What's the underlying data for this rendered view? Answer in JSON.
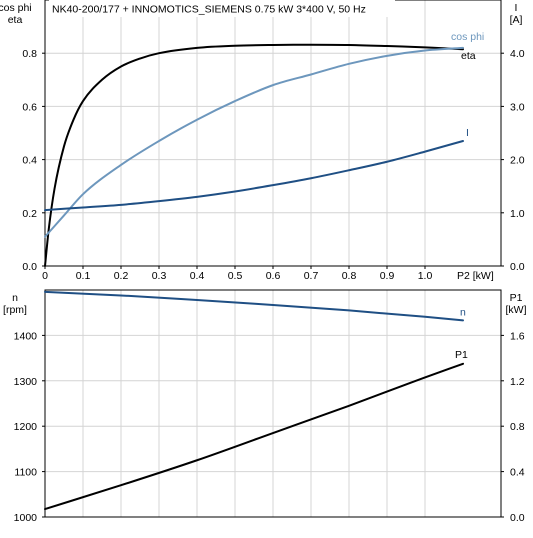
{
  "title": "NK40-200/177 + INNOMOTICS_SIEMENS   0.75 kW   3*400 V, 50 Hz",
  "chart_data": [
    {
      "type": "line",
      "x_axis": {
        "label": "P2 [kW]",
        "range": [
          0,
          1.1
        ],
        "ticks": [
          0,
          0.1,
          0.2,
          0.3,
          0.4,
          0.5,
          0.6,
          0.7,
          0.8,
          0.9,
          1.0
        ],
        "tick_labels": [
          "0",
          "0.1",
          "0.2",
          "0.3",
          "0.4",
          "0.5",
          "0.6",
          "0.7",
          "0.8",
          "0.9",
          "1.0"
        ]
      },
      "y_left": {
        "label_lines": [
          "cos phi",
          "eta"
        ],
        "range": [
          0,
          1.0
        ],
        "ticks": [
          0,
          0.2,
          0.4,
          0.6,
          0.8
        ],
        "tick_labels": [
          "0.0",
          "0.2",
          "0.4",
          "0.6",
          "0.8"
        ]
      },
      "y_right": {
        "label_lines": [
          "I",
          "[A]"
        ],
        "range": [
          0,
          5.0
        ],
        "ticks": [
          0,
          1,
          2,
          3,
          4
        ],
        "tick_labels": [
          "0.0",
          "1.0",
          "2.0",
          "3.0",
          "4.0"
        ]
      },
      "series": [
        {
          "name": "eta",
          "axis": "left",
          "color": "#000000",
          "x": [
            0,
            0.01,
            0.025,
            0.05,
            0.075,
            0.1,
            0.15,
            0.2,
            0.25,
            0.3,
            0.4,
            0.5,
            0.6,
            0.7,
            0.8,
            0.9,
            1.0,
            1.1
          ],
          "y": [
            0,
            0.14,
            0.29,
            0.45,
            0.55,
            0.62,
            0.7,
            0.75,
            0.78,
            0.8,
            0.82,
            0.828,
            0.831,
            0.832,
            0.831,
            0.827,
            0.822,
            0.815
          ]
        },
        {
          "name": "cos phi",
          "axis": "left",
          "color": "#6d97bd",
          "x": [
            0,
            0.05,
            0.1,
            0.2,
            0.3,
            0.4,
            0.5,
            0.6,
            0.7,
            0.8,
            0.9,
            1.0,
            1.1
          ],
          "y": [
            0.11,
            0.19,
            0.27,
            0.38,
            0.47,
            0.55,
            0.62,
            0.68,
            0.72,
            0.76,
            0.79,
            0.81,
            0.82
          ]
        },
        {
          "name": "I",
          "axis": "right",
          "color": "#1f4f84",
          "x": [
            0,
            0.1,
            0.2,
            0.3,
            0.4,
            0.5,
            0.6,
            0.7,
            0.8,
            0.9,
            1.0,
            1.1
          ],
          "y": [
            1.05,
            1.1,
            1.15,
            1.22,
            1.3,
            1.4,
            1.52,
            1.65,
            1.8,
            1.96,
            2.15,
            2.35
          ]
        }
      ]
    },
    {
      "type": "line",
      "x_axis": {
        "range": [
          0,
          1.1
        ]
      },
      "y_left": {
        "label_lines": [
          "n",
          "[rpm]"
        ],
        "range": [
          1000,
          1500
        ],
        "ticks": [
          1000,
          1100,
          1200,
          1300,
          1400
        ],
        "tick_labels": [
          "1000",
          "1100",
          "1200",
          "1300",
          "1400"
        ]
      },
      "y_right": {
        "label_lines": [
          "P1",
          "[kW]"
        ],
        "range": [
          0,
          2.0
        ],
        "ticks": [
          0,
          0.4,
          0.8,
          1.2,
          1.6
        ],
        "tick_labels": [
          "0.0",
          "0.4",
          "0.8",
          "1.2",
          "1.6"
        ]
      },
      "series": [
        {
          "name": "n",
          "axis": "left",
          "color": "#1f4f84",
          "x": [
            0,
            0.2,
            0.4,
            0.6,
            0.8,
            1.0,
            1.1
          ],
          "y": [
            1496,
            1488,
            1478,
            1467,
            1455,
            1441,
            1433
          ]
        },
        {
          "name": "P1",
          "axis": "right",
          "color": "#000000",
          "x": [
            0,
            0.2,
            0.4,
            0.6,
            0.8,
            1.0,
            1.1
          ],
          "y": [
            0.07,
            0.28,
            0.5,
            0.74,
            0.98,
            1.23,
            1.35
          ]
        }
      ]
    }
  ]
}
